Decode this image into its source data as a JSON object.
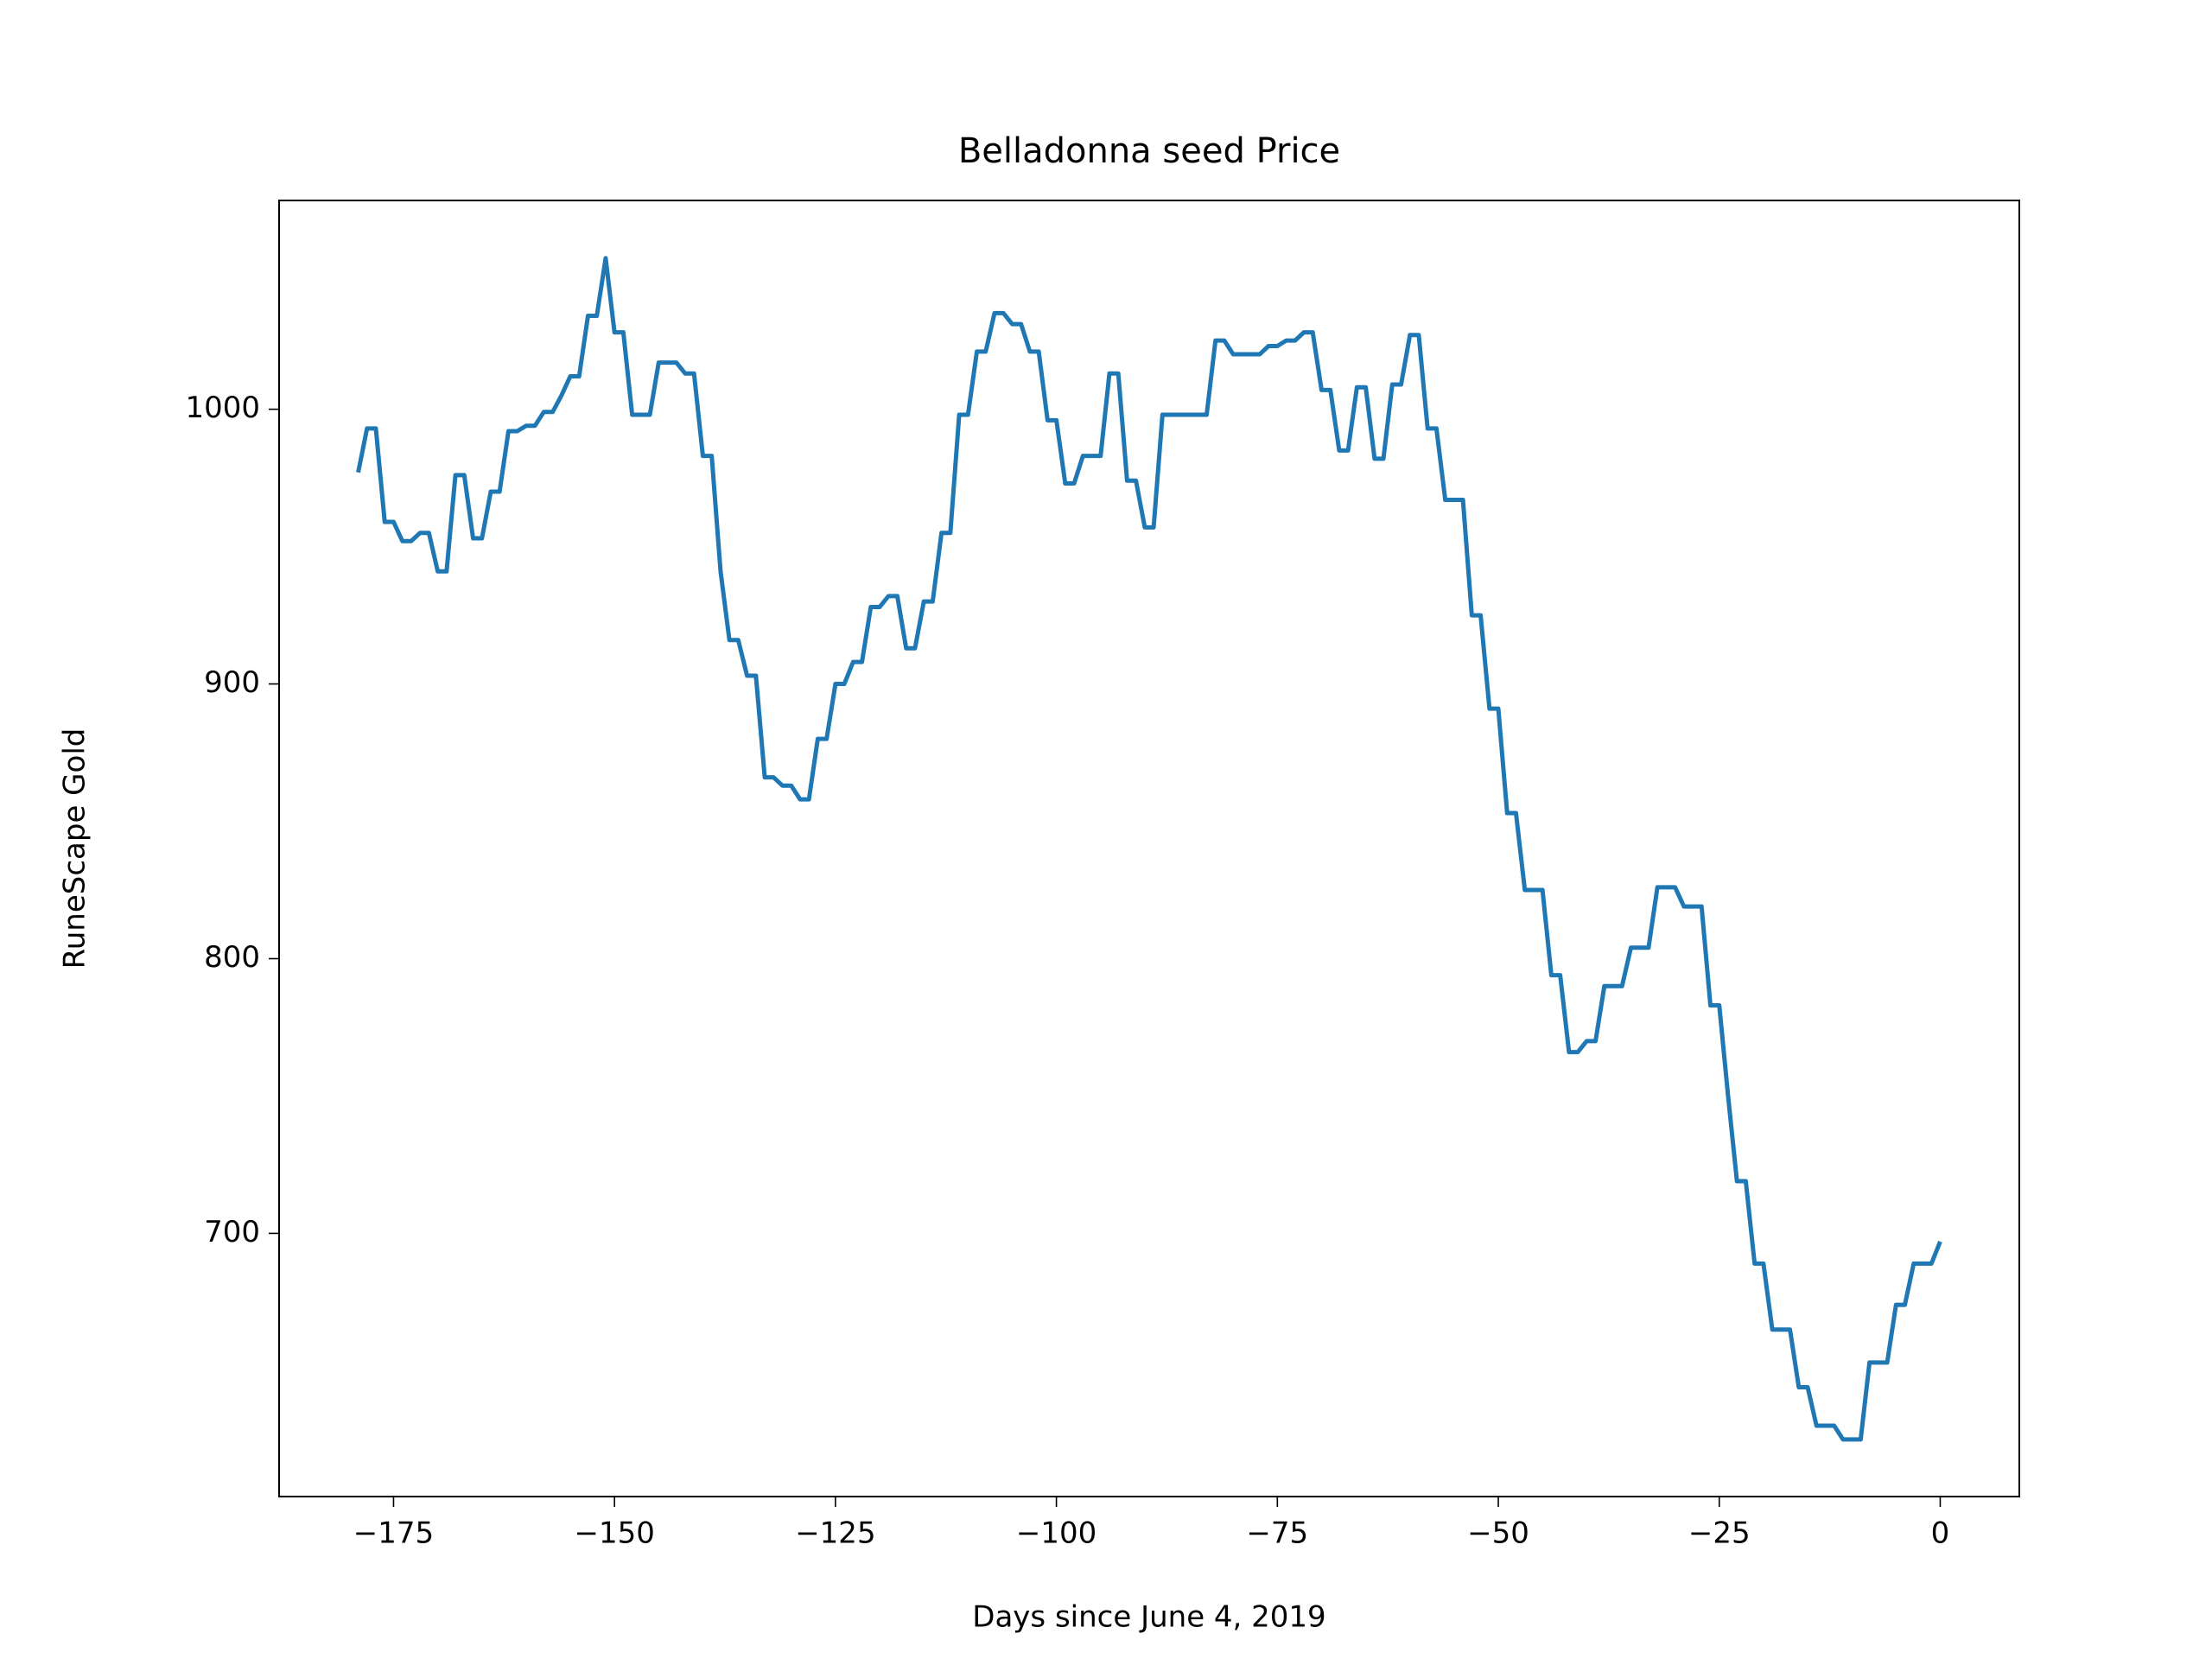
{
  "chart_data": {
    "type": "line",
    "title": "Belladonna seed Price",
    "x_label": "Days since June 4, 2019",
    "y_label": "RuneScape Gold",
    "x": [
      -179,
      -178,
      -177,
      -176,
      -175,
      -174,
      -173,
      -172,
      -171,
      -170,
      -169,
      -168,
      -167,
      -166,
      -165,
      -164,
      -163,
      -162,
      -161,
      -160,
      -159,
      -158,
      -157,
      -156,
      -155,
      -154,
      -153,
      -152,
      -151,
      -150,
      -149,
      -148,
      -147,
      -146,
      -145,
      -144,
      -143,
      -142,
      -141,
      -140,
      -139,
      -138,
      -137,
      -136,
      -135,
      -134,
      -133,
      -132,
      -131,
      -130,
      -129,
      -128,
      -127,
      -126,
      -125,
      -124,
      -123,
      -122,
      -121,
      -120,
      -119,
      -118,
      -117,
      -116,
      -115,
      -114,
      -113,
      -112,
      -111,
      -110,
      -109,
      -108,
      -107,
      -106,
      -105,
      -104,
      -103,
      -102,
      -101,
      -100,
      -99,
      -98,
      -97,
      -96,
      -95,
      -94,
      -93,
      -92,
      -91,
      -90,
      -89,
      -88,
      -87,
      -86,
      -85,
      -84,
      -83,
      -82,
      -81,
      -80,
      -79,
      -78,
      -77,
      -76,
      -75,
      -74,
      -73,
      -72,
      -71,
      -70,
      -69,
      -68,
      -67,
      -66,
      -65,
      -64,
      -63,
      -62,
      -61,
      -60,
      -59,
      -58,
      -57,
      -56,
      -55,
      -54,
      -53,
      -52,
      -51,
      -50,
      -49,
      -48,
      -47,
      -46,
      -45,
      -44,
      -43,
      -42,
      -41,
      -40,
      -39,
      -38,
      -37,
      -36,
      -35,
      -34,
      -33,
      -32,
      -31,
      -30,
      -29,
      -28,
      -27,
      -26,
      -25,
      -24,
      -23,
      -22,
      -21,
      -20,
      -19,
      -18,
      -17,
      -16,
      -15,
      -14,
      -13,
      -12,
      -11,
      -10,
      -9,
      -8,
      -7,
      -6,
      -5,
      -4,
      -3,
      -2,
      -1,
      0
    ],
    "series": [
      {
        "color": "#1f77b4",
        "values": [
          977,
          993,
          993,
          959,
          959,
          952,
          952,
          955,
          955,
          941,
          941,
          976,
          976,
          953,
          953,
          970,
          970,
          992,
          992,
          994,
          994,
          999,
          999,
          1005,
          1012,
          1012,
          1034,
          1034,
          1055,
          1028,
          1028,
          998,
          998,
          998,
          1017,
          1017,
          1017,
          1013,
          1013,
          983,
          983,
          941,
          916,
          916,
          903,
          903,
          866,
          866,
          863,
          863,
          858,
          858,
          880,
          880,
          900,
          900,
          908,
          908,
          928,
          928,
          932,
          932,
          913,
          913,
          930,
          930,
          955,
          955,
          998,
          998,
          1021,
          1021,
          1035,
          1035,
          1031,
          1031,
          1021,
          1021,
          996,
          996,
          973,
          973,
          983,
          983,
          983,
          1013,
          1013,
          974,
          974,
          957,
          957,
          998,
          998,
          998,
          998,
          998,
          998,
          1025,
          1025,
          1020,
          1020,
          1020,
          1020,
          1023,
          1023,
          1025,
          1025,
          1028,
          1028,
          1007,
          1007,
          985,
          985,
          1008,
          1008,
          982,
          982,
          1009,
          1009,
          1027,
          1027,
          993,
          993,
          967,
          967,
          967,
          925,
          925,
          891,
          891,
          853,
          853,
          825,
          825,
          825,
          794,
          794,
          766,
          766,
          770,
          770,
          790,
          790,
          790,
          804,
          804,
          804,
          826,
          826,
          826,
          819,
          819,
          819,
          783,
          783,
          750,
          719,
          719,
          689,
          689,
          665,
          665,
          665,
          644,
          644,
          630,
          630,
          630,
          625,
          625,
          625,
          653,
          653,
          653,
          674,
          674,
          689,
          689,
          689,
          697
        ]
      }
    ],
    "xlim": [
      -187.95,
      8.95
    ],
    "ylim": [
      604.2,
      1076
    ],
    "xticks": [
      {
        "value": -175,
        "label": "−175"
      },
      {
        "value": -150,
        "label": "−150"
      },
      {
        "value": -125,
        "label": "−125"
      },
      {
        "value": -100,
        "label": "−100"
      },
      {
        "value": -75,
        "label": "−75"
      },
      {
        "value": -50,
        "label": "−50"
      },
      {
        "value": -25,
        "label": "−25"
      },
      0
    ],
    "yticks": [
      700,
      800,
      900,
      1000
    ]
  }
}
